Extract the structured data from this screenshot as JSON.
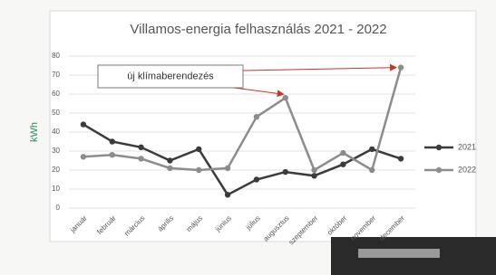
{
  "chart_data": {
    "type": "line",
    "title": "Villamos-energia felhasználás 2021 - 2022",
    "y_label": "kWh",
    "categories": [
      "január",
      "február",
      "március",
      "április",
      "május",
      "június",
      "július",
      "augusztus",
      "szeptember",
      "október",
      "november",
      "december"
    ],
    "series": [
      {
        "name": "2021",
        "color": "#3b3b3b",
        "values": [
          44,
          35,
          32,
          25,
          31,
          7,
          15,
          19,
          17,
          23,
          31,
          26
        ]
      },
      {
        "name": "2022",
        "color": "#8c8c8c",
        "values": [
          27,
          28,
          26,
          21,
          20,
          21,
          48,
          58,
          20,
          29,
          20,
          74
        ]
      }
    ],
    "ylim": [
      0,
      80
    ],
    "yticks": [
      0,
      10,
      20,
      30,
      40,
      50,
      60,
      70,
      80
    ],
    "grid": true,
    "legend": "right",
    "annotation": {
      "text": "új klímaberendezés",
      "targets": [
        [
          1,
          7
        ],
        [
          1,
          11
        ]
      ]
    }
  }
}
